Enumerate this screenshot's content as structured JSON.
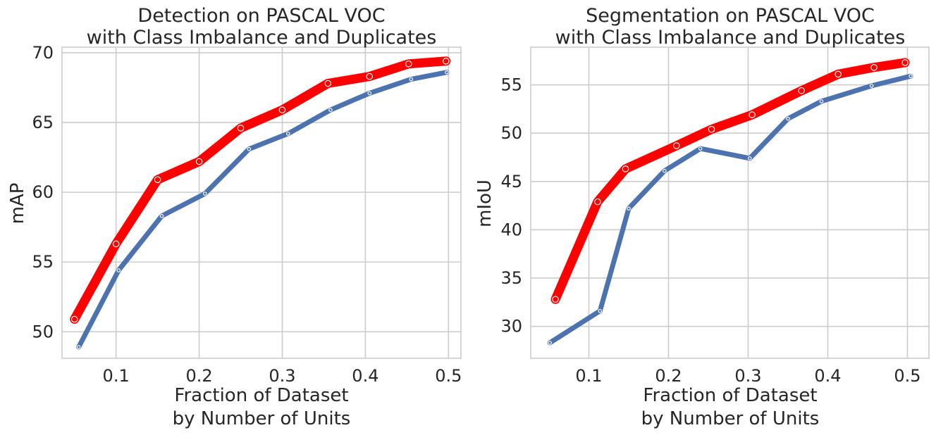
{
  "chart_data": [
    {
      "type": "line",
      "title_line1": "Detection on PASCAL VOC",
      "title_line2": "with Class Imbalance and Duplicates",
      "xlabel_line1": "Fraction of Dataset",
      "xlabel_line2": "by Number of Units",
      "ylabel": "mAP",
      "xlim": [
        0.035,
        0.515
      ],
      "ylim": [
        48.1,
        70.4
      ],
      "xticks": [
        0.1,
        0.2,
        0.3,
        0.4,
        0.5
      ],
      "xtick_labels": [
        "0.1",
        "0.2",
        "0.3",
        "0.4",
        "0.5"
      ],
      "yticks": [
        50,
        55,
        60,
        65,
        70
      ],
      "ytick_labels": [
        "50",
        "55",
        "60",
        "65",
        "70"
      ],
      "series": [
        {
          "name": "blue",
          "color": "#4c72b0",
          "x": [
            0.055,
            0.103,
            0.155,
            0.207,
            0.26,
            0.307,
            0.358,
            0.405,
            0.455,
            0.498
          ],
          "y": [
            48.9,
            54.4,
            58.3,
            59.9,
            63.1,
            64.2,
            65.9,
            67.1,
            68.1,
            68.6
          ]
        },
        {
          "name": "red",
          "color": "#ff0000",
          "x": [
            0.05,
            0.1,
            0.15,
            0.2,
            0.25,
            0.3,
            0.355,
            0.405,
            0.452,
            0.497
          ],
          "y": [
            50.9,
            56.3,
            60.9,
            62.2,
            64.6,
            65.9,
            67.8,
            68.3,
            69.2,
            69.4
          ]
        }
      ]
    },
    {
      "type": "line",
      "title_line1": "Segmentation on PASCAL VOC",
      "title_line2": "with Class Imbalance and Duplicates",
      "xlabel_line1": "Fraction of Dataset",
      "xlabel_line2": "by Number of Units",
      "ylabel": "mIoU",
      "xlim": [
        0.027,
        0.527
      ],
      "ylim": [
        26.7,
        58.9
      ],
      "xticks": [
        0.1,
        0.2,
        0.3,
        0.4,
        0.5
      ],
      "xtick_labels": [
        "0.1",
        "0.2",
        "0.3",
        "0.4",
        "0.5"
      ],
      "yticks": [
        30,
        35,
        40,
        45,
        50,
        55
      ],
      "ytick_labels": [
        "30",
        "35",
        "40",
        "45",
        "50",
        "55"
      ],
      "series": [
        {
          "name": "blue",
          "color": "#4c72b0",
          "x": [
            0.051,
            0.114,
            0.15,
            0.195,
            0.24,
            0.302,
            0.35,
            0.392,
            0.455,
            0.504
          ],
          "y": [
            28.3,
            31.6,
            42.2,
            46.1,
            48.4,
            47.4,
            51.5,
            53.3,
            54.9,
            55.9
          ]
        },
        {
          "name": "red",
          "color": "#ff0000",
          "x": [
            0.058,
            0.111,
            0.146,
            0.21,
            0.254,
            0.305,
            0.367,
            0.413,
            0.458,
            0.497
          ],
          "y": [
            32.8,
            42.9,
            46.3,
            48.7,
            50.4,
            51.9,
            54.4,
            56.1,
            56.8,
            57.3
          ]
        }
      ]
    }
  ]
}
